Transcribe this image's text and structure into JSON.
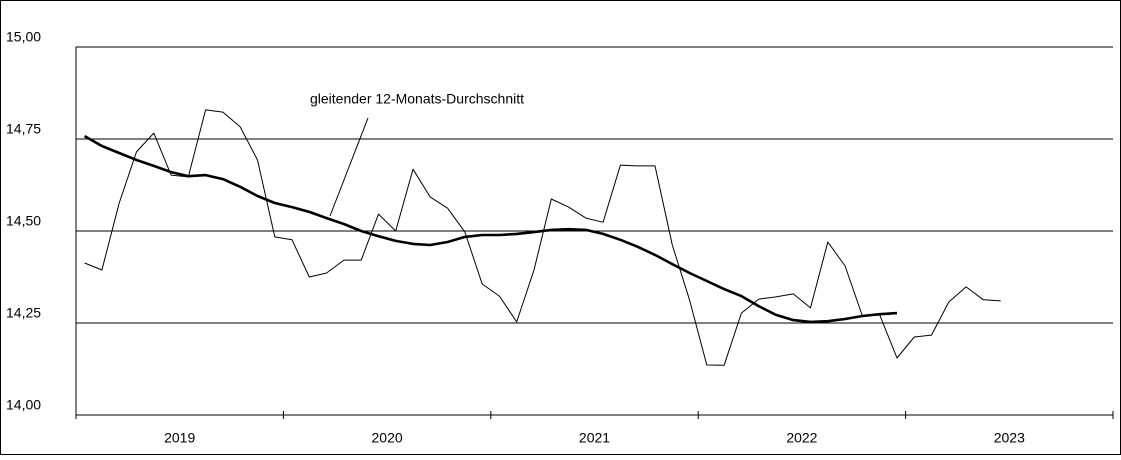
{
  "chart_data": {
    "type": "line",
    "annotation": "gleitender 12-Monats-Durchschnitt",
    "years": [
      "2019",
      "2020",
      "2021",
      "2022",
      "2023"
    ],
    "months_per_year": 12,
    "ylim": [
      14,
      15
    ],
    "yticks": [
      {
        "value": 14,
        "label": "14,00"
      },
      {
        "value": 14.25,
        "label": "14,25"
      },
      {
        "value": 14.5,
        "label": "14,50"
      },
      {
        "value": 14.75,
        "label": "14,75"
      },
      {
        "value": 15,
        "label": "15,00"
      }
    ],
    "grid": true,
    "series": [
      {
        "color": "#000000",
        "width": 1,
        "values": [
          14.413,
          14.394,
          14.576,
          14.715,
          14.766,
          14.652,
          14.647,
          14.829,
          14.823,
          14.783,
          14.693,
          14.484,
          14.476,
          14.375,
          14.386,
          14.421,
          14.421,
          14.546,
          14.5,
          14.668,
          14.592,
          14.562,
          14.497,
          14.356,
          14.323,
          14.253,
          14.394,
          14.587,
          14.565,
          14.535,
          14.524,
          14.679,
          14.677,
          14.677,
          14.462,
          14.312,
          14.136,
          14.135,
          14.277,
          14.315,
          14.321,
          14.329,
          14.291,
          14.47,
          14.405,
          14.269,
          14.272,
          14.155,
          14.212,
          14.217,
          14.307,
          14.348,
          14.313,
          14.31,
          null,
          null,
          null,
          null,
          null,
          null
        ]
      },
      {
        "color": "#000000",
        "width": 2.6,
        "values": [
          14.758,
          14.731,
          14.712,
          14.693,
          14.677,
          14.66,
          14.649,
          14.652,
          14.641,
          14.62,
          14.595,
          14.576,
          14.565,
          14.552,
          14.535,
          14.519,
          14.5,
          14.486,
          14.473,
          14.465,
          14.462,
          14.47,
          14.484,
          14.489,
          14.489,
          14.492,
          14.497,
          14.503,
          14.505,
          14.503,
          14.492,
          14.476,
          14.457,
          14.435,
          14.41,
          14.386,
          14.364,
          14.342,
          14.323,
          14.296,
          14.272,
          14.258,
          14.253,
          14.255,
          14.261,
          14.269,
          14.274,
          14.277,
          null,
          null,
          null,
          null,
          null,
          null,
          null,
          null,
          null,
          null,
          null,
          null
        ]
      }
    ]
  }
}
